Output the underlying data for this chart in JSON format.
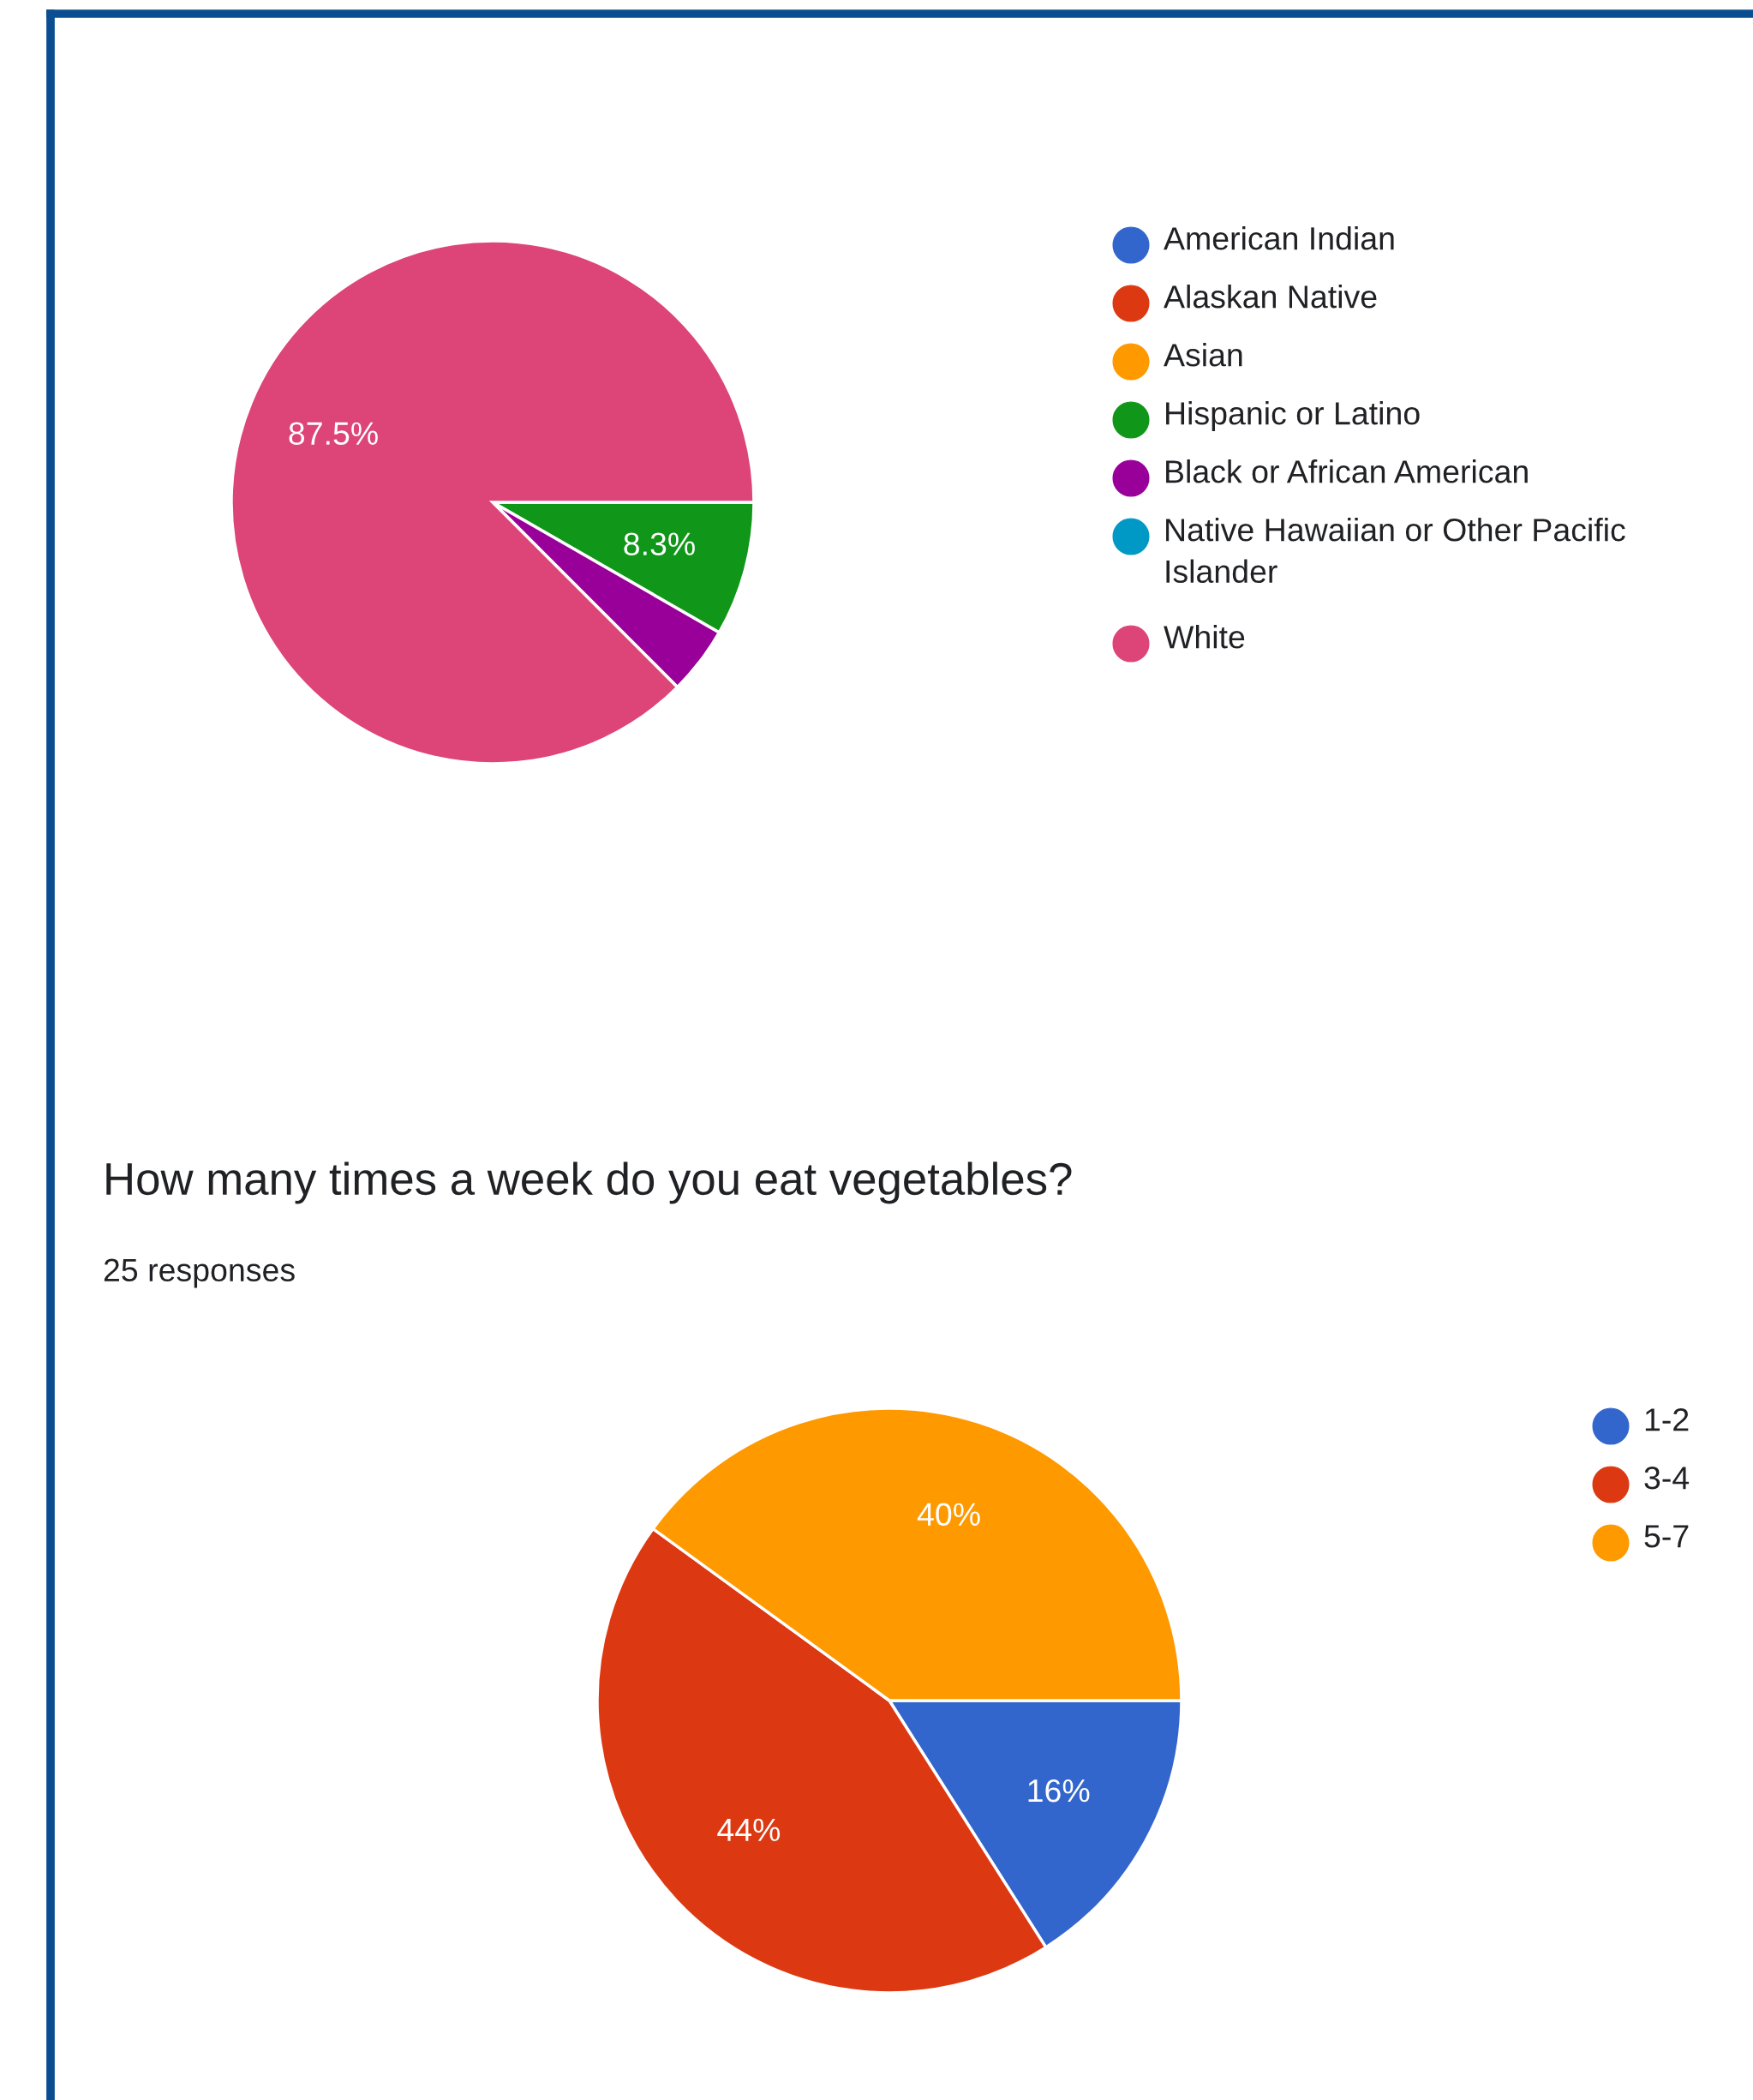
{
  "chart_data": [
    {
      "type": "pie",
      "categories": [
        "American Indian",
        "Alaskan Native",
        "Asian",
        "Hispanic or Latino",
        "Black or African American",
        "Native Hawaiian or Other Pacific Islander",
        "White"
      ],
      "values": [
        0,
        0,
        0,
        8.3,
        4.2,
        0,
        87.5
      ],
      "colors": [
        "#3366cc",
        "#dc3912",
        "#ff9900",
        "#109618",
        "#990099",
        "#0099c6",
        "#dd4477"
      ],
      "value_labels": [
        null,
        null,
        null,
        "8.3%",
        null,
        null,
        "87.5%"
      ],
      "legend": "right"
    },
    {
      "type": "pie",
      "title": "How many times a week do you eat vegetables?",
      "subtitle": "25 responses",
      "categories": [
        "1-2",
        "3-4",
        "5-7"
      ],
      "values": [
        16,
        44,
        40
      ],
      "colors": [
        "#3366cc",
        "#dc3912",
        "#ff9900"
      ],
      "value_labels": [
        "16%",
        "44%",
        "40%"
      ],
      "legend": "right"
    }
  ]
}
